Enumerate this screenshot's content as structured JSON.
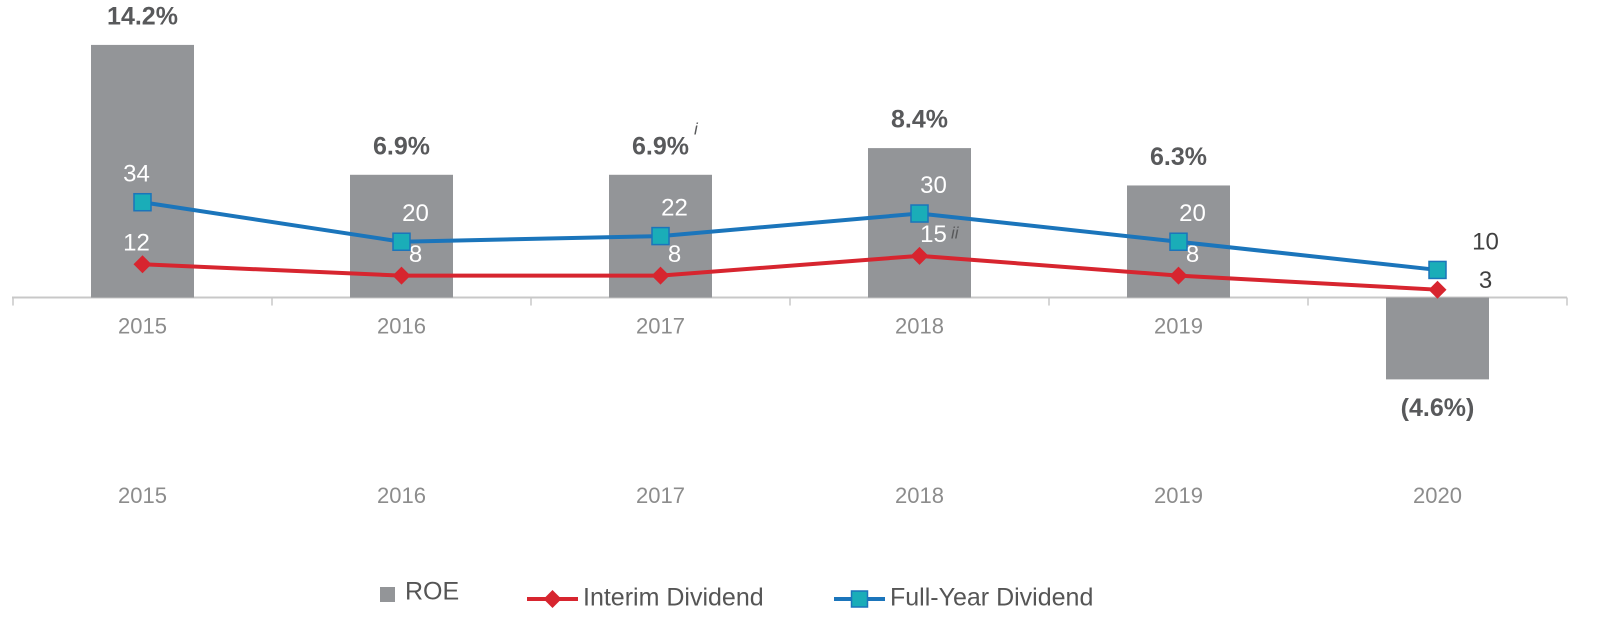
{
  "chart_data": {
    "type": "bar",
    "categories": [
      "2015",
      "2016",
      "2017",
      "2018",
      "2019",
      "2020"
    ],
    "series": [
      {
        "name": "ROE",
        "type": "bar",
        "color": "#939598",
        "values": [
          14.2,
          6.9,
          6.9,
          8.4,
          6.3,
          -4.6
        ],
        "value_labels": [
          "14.2%",
          "6.9%",
          "6.9%",
          "8.4%",
          "6.3%",
          "(4.6%)"
        ]
      },
      {
        "name": "Interim Dividend",
        "type": "line",
        "axis": "y2",
        "color": "#d7252f",
        "marker": "diamond",
        "values": [
          12,
          8,
          8,
          15,
          8,
          3
        ]
      },
      {
        "name": "Full-Year Dividend",
        "type": "line",
        "axis": "y2",
        "color": "#1b75bb",
        "marker_color": "#1aadb8",
        "marker": "square",
        "values": [
          34,
          20,
          22,
          30,
          20,
          10
        ]
      }
    ],
    "annotations": [
      "i",
      "ii"
    ],
    "ylim": [
      -17,
      15.6
    ],
    "y2lim": [
      -107,
      98.6
    ],
    "legend": "bottom"
  }
}
